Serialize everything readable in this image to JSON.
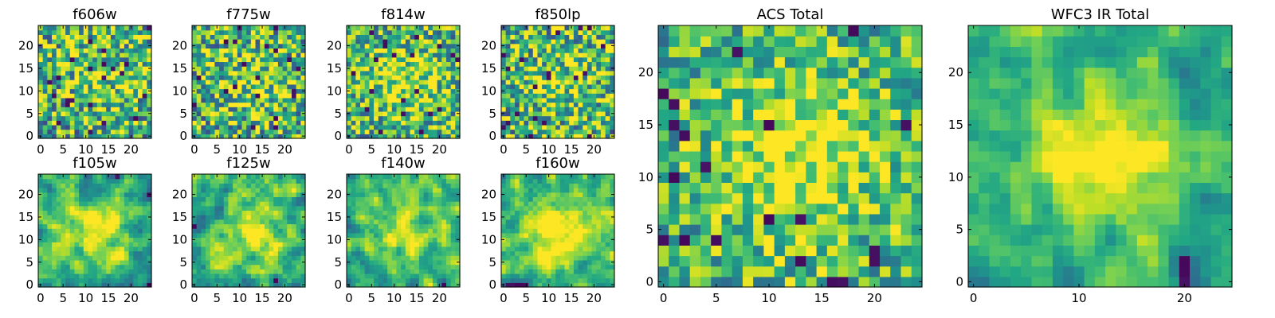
{
  "figure": {
    "colormap": "viridis",
    "background": "#ffffff"
  },
  "chart_data": [
    {
      "type": "heatmap",
      "title": "f606w",
      "grid_size": 25,
      "xlim": [
        0,
        24
      ],
      "ylim": [
        0,
        24
      ],
      "xticks": [
        0,
        5,
        10,
        15,
        20
      ],
      "yticks": [
        0,
        5,
        10,
        15,
        20
      ],
      "texture": "noise",
      "seed": 11,
      "blob": {
        "x": 14,
        "y": 13,
        "sigma": 6,
        "amplitude": 0.15
      },
      "noise": 0.55,
      "grid": false
    },
    {
      "type": "heatmap",
      "title": "f775w",
      "grid_size": 25,
      "xlim": [
        0,
        24
      ],
      "ylim": [
        0,
        24
      ],
      "xticks": [
        0,
        5,
        10,
        15,
        20
      ],
      "yticks": [
        0,
        5,
        10,
        15,
        20
      ],
      "texture": "noise",
      "seed": 23,
      "blob": {
        "x": 13,
        "y": 12,
        "sigma": 6,
        "amplitude": 0.2
      },
      "noise": 0.55,
      "grid": false
    },
    {
      "type": "heatmap",
      "title": "f814w",
      "grid_size": 25,
      "xlim": [
        0,
        24
      ],
      "ylim": [
        0,
        24
      ],
      "xticks": [
        0,
        5,
        10,
        15,
        20
      ],
      "yticks": [
        0,
        5,
        10,
        15,
        20
      ],
      "texture": "noise",
      "seed": 37,
      "blob": {
        "x": 13,
        "y": 12,
        "sigma": 6,
        "amplitude": 0.28
      },
      "noise": 0.5,
      "grid": false
    },
    {
      "type": "heatmap",
      "title": "f850lp",
      "grid_size": 25,
      "xlim": [
        0,
        24
      ],
      "ylim": [
        0,
        24
      ],
      "xticks": [
        0,
        5,
        10,
        15,
        20
      ],
      "yticks": [
        0,
        5,
        10,
        15,
        20
      ],
      "texture": "noise",
      "seed": 41,
      "blob": {
        "x": 13,
        "y": 12,
        "sigma": 6,
        "amplitude": 0.2
      },
      "noise": 0.55,
      "grid": false
    },
    {
      "type": "heatmap",
      "title": "f105w",
      "grid_size": 25,
      "xlim": [
        0,
        24
      ],
      "ylim": [
        0,
        24
      ],
      "xticks": [
        0,
        5,
        10,
        15,
        20
      ],
      "yticks": [
        0,
        5,
        10,
        15,
        20
      ],
      "texture": "smooth",
      "seed": 53,
      "blob": {
        "x": 13,
        "y": 12,
        "sigma": 5,
        "amplitude": 0.35
      },
      "noise": 0.45,
      "grid": false
    },
    {
      "type": "heatmap",
      "title": "f125w",
      "grid_size": 25,
      "xlim": [
        0,
        24
      ],
      "ylim": [
        0,
        24
      ],
      "xticks": [
        0,
        5,
        10,
        15,
        20
      ],
      "yticks": [
        0,
        5,
        10,
        15,
        20
      ],
      "texture": "smooth",
      "seed": 67,
      "blob": {
        "x": 13,
        "y": 12,
        "sigma": 5,
        "amplitude": 0.3
      },
      "noise": 0.45,
      "grid": false
    },
    {
      "type": "heatmap",
      "title": "f140w",
      "grid_size": 25,
      "xlim": [
        0,
        24
      ],
      "ylim": [
        0,
        24
      ],
      "xticks": [
        0,
        5,
        10,
        15,
        20
      ],
      "yticks": [
        0,
        5,
        10,
        15,
        20
      ],
      "texture": "smooth",
      "seed": 79,
      "blob": {
        "x": 12,
        "y": 12,
        "sigma": 5,
        "amplitude": 0.3
      },
      "noise": 0.45,
      "grid": false
    },
    {
      "type": "heatmap",
      "title": "f160w",
      "grid_size": 25,
      "xlim": [
        0,
        24
      ],
      "ylim": [
        0,
        24
      ],
      "xticks": [
        0,
        5,
        10,
        15,
        20
      ],
      "yticks": [
        0,
        5,
        10,
        15,
        20
      ],
      "texture": "smooth",
      "seed": 97,
      "blob": {
        "x": 12,
        "y": 12,
        "sigma": 5,
        "amplitude": 0.35
      },
      "noise": 0.45,
      "grid": false
    },
    {
      "type": "heatmap",
      "title": "ACS Total",
      "grid_size": 25,
      "xlim": [
        0,
        24
      ],
      "ylim": [
        0,
        24
      ],
      "xticks": [
        0,
        5,
        10,
        15,
        20
      ],
      "yticks": [
        0,
        5,
        10,
        15,
        20
      ],
      "texture": "noise",
      "seed": 113,
      "blob": {
        "x": 13,
        "y": 12,
        "sigma": 6,
        "amplitude": 0.35
      },
      "noise": 0.4,
      "grid": false
    },
    {
      "type": "heatmap",
      "title": "WFC3 IR Total",
      "grid_size": 25,
      "xlim": [
        0,
        24
      ],
      "ylim": [
        0,
        24
      ],
      "xticks": [
        0,
        10,
        20
      ],
      "yticks": [
        0,
        5,
        10,
        15,
        20
      ],
      "texture": "smooth",
      "seed": 131,
      "blob": {
        "x": 13,
        "y": 12,
        "sigma": 4.5,
        "amplitude": 0.5
      },
      "noise": 0.35,
      "grid": false
    }
  ]
}
